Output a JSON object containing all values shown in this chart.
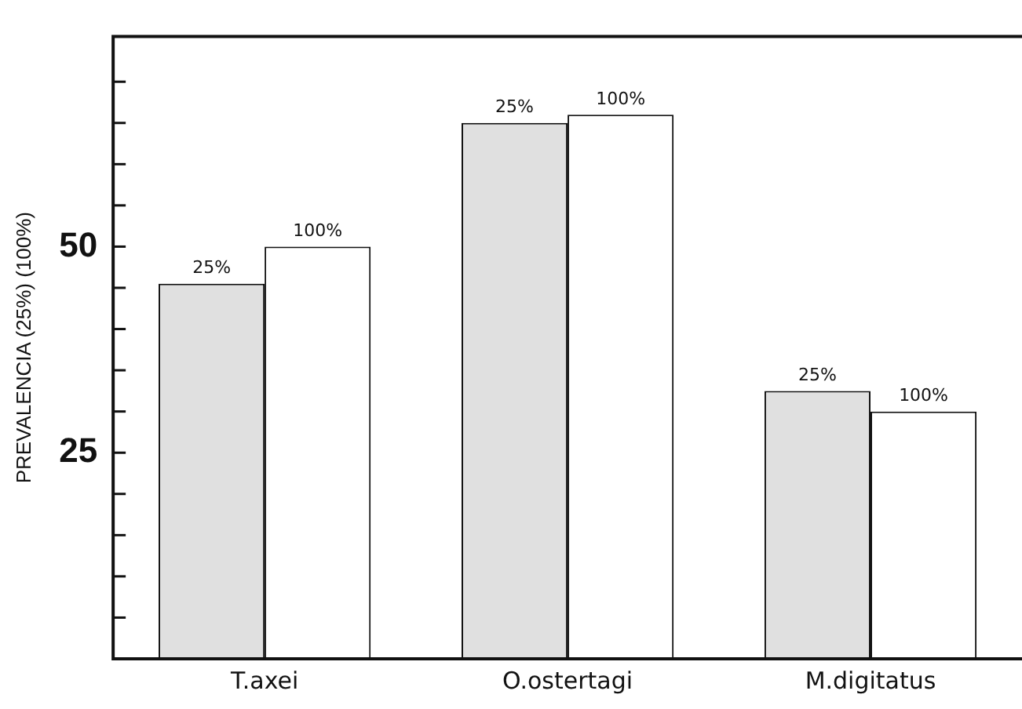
{
  "chart_data": {
    "type": "bar",
    "ylabel": "PREVALENCIA (25%) (100%)",
    "categories": [
      "T.axei",
      "O.ostertagi",
      "M.digitatus"
    ],
    "series": [
      {
        "name": "25%",
        "color": "#e0e0e0",
        "values": [
          45.5,
          65,
          32.5
        ]
      },
      {
        "name": "100%",
        "color": "#ffffff",
        "values": [
          50,
          66,
          30
        ]
      }
    ],
    "ylim": [
      0,
      75.5
    ],
    "yticks": [
      {
        "value": 5,
        "label": null
      },
      {
        "value": 10,
        "label": null
      },
      {
        "value": 15,
        "label": null
      },
      {
        "value": 20,
        "label": null
      },
      25,
      {
        "value": 30,
        "label": null
      },
      {
        "value": 35,
        "label": null
      },
      {
        "value": 40,
        "label": null
      },
      {
        "value": 45,
        "label": null
      },
      50,
      {
        "value": 55,
        "label": null
      },
      {
        "value": 60,
        "label": null
      },
      {
        "value": 65,
        "label": null
      },
      {
        "value": 70,
        "label": null
      }
    ],
    "grid": false,
    "legend": false
  }
}
